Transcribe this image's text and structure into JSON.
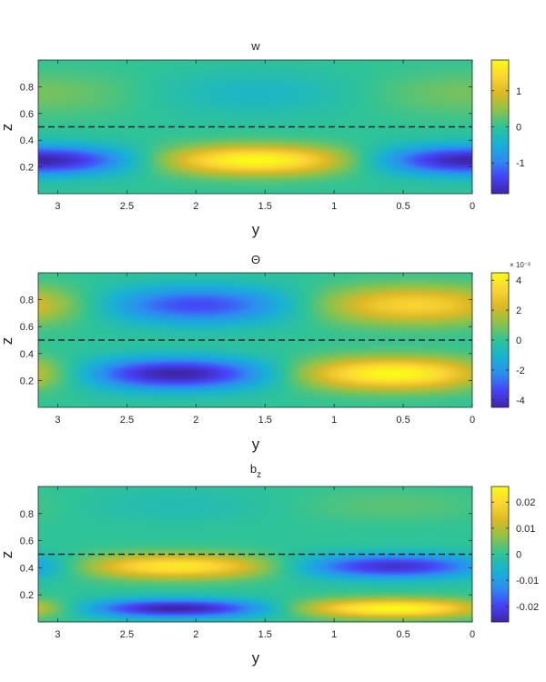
{
  "colormap": [
    "#3e26a8",
    "#4743f8",
    "#2d8df0",
    "#18b2d4",
    "#2fc398",
    "#8cc24c",
    "#dbb925",
    "#fcd535",
    "#f9fb15"
  ],
  "dashed_line_color": "#262626",
  "chart_data": [
    {
      "type": "heatmap",
      "title": "w",
      "xlabel": "y",
      "ylabel": "z",
      "xlim": [
        0,
        3.1416
      ],
      "x_reversed": true,
      "ylim": [
        0,
        1
      ],
      "x_ticks": [
        3,
        2.5,
        2,
        1.5,
        1,
        0.5,
        0
      ],
      "x_tick_labels": [
        "3",
        "2.5",
        "2",
        "1.5",
        "1",
        "0.5",
        "0"
      ],
      "y_ticks": [
        0.2,
        0.4,
        0.6,
        0.8
      ],
      "y_tick_labels": [
        "0.2",
        "0.4",
        "0.6",
        "0.8"
      ],
      "dashed_line_z": 0.5,
      "colorbar": {
        "clim": [
          -1.85,
          1.85
        ],
        "ticks": [
          -1,
          0,
          1
        ],
        "tick_labels": [
          "-1",
          "0",
          "1"
        ],
        "exponent_label": ""
      },
      "field": {
        "lower": {
          "amplitude": -1.85,
          "phase": 0,
          "center_z": 0.25,
          "width_z": 0.11
        },
        "upper": {
          "amplitude": 0.35,
          "phase": 0,
          "center_z": 0.75,
          "width_z": 0.16
        }
      }
    },
    {
      "type": "heatmap",
      "title": "Θ",
      "xlabel": "y",
      "ylabel": "z",
      "xlim": [
        0,
        3.1416
      ],
      "x_reversed": true,
      "ylim": [
        0,
        1
      ],
      "x_ticks": [
        3,
        2.5,
        2,
        1.5,
        1,
        0.5,
        0
      ],
      "x_tick_labels": [
        "3",
        "2.5",
        "2",
        "1.5",
        "1",
        "0.5",
        "0"
      ],
      "y_ticks": [
        0.2,
        0.4,
        0.6,
        0.8
      ],
      "y_tick_labels": [
        "0.2",
        "0.4",
        "0.6",
        "0.8"
      ],
      "dashed_line_z": 0.5,
      "colorbar": {
        "clim": [
          -4.5,
          4.5
        ],
        "ticks": [
          -4,
          -2,
          0,
          2,
          4
        ],
        "tick_labels": [
          "-4",
          "-2",
          "0",
          "2",
          "4"
        ],
        "exponent_label": "× 10⁻³"
      },
      "field": {
        "lower": {
          "amplitude": -4.5,
          "phase": -1.0,
          "center_z": 0.25,
          "width_z": 0.12
        },
        "upper": {
          "amplitude": -3.3,
          "phase": -1.15,
          "center_z": 0.76,
          "width_z": 0.14
        }
      }
    },
    {
      "type": "heatmap",
      "title": "b_z",
      "xlabel": "y",
      "ylabel": "z",
      "xlim": [
        0,
        3.1416
      ],
      "x_reversed": true,
      "ylim": [
        0,
        1
      ],
      "x_ticks": [
        3,
        2.5,
        2,
        1.5,
        1,
        0.5,
        0
      ],
      "x_tick_labels": [
        "3",
        "2.5",
        "2",
        "1.5",
        "1",
        "0.5",
        "0"
      ],
      "y_ticks": [
        0.2,
        0.4,
        0.6,
        0.8
      ],
      "y_tick_labels": [
        "0.2",
        "0.4",
        "0.6",
        "0.8"
      ],
      "dashed_line_z": 0.5,
      "colorbar": {
        "clim": [
          -0.026,
          0.026
        ],
        "ticks": [
          -0.02,
          -0.01,
          0,
          0.01,
          0.02
        ],
        "tick_labels": [
          "-0.02",
          "-0.01",
          "0",
          "0.01",
          "0.02"
        ],
        "exponent_label": ""
      },
      "field": {
        "lower": {
          "amplitude": -0.026,
          "phase": -1.0,
          "center_z": 0.1,
          "width_z": 0.07
        },
        "upper": {
          "amplitude": 0.023,
          "phase": -1.0,
          "center_z": 0.41,
          "width_z": 0.09
        },
        "top": {
          "amplitude": -0.003,
          "phase": -1.0,
          "center_z": 0.86,
          "width_z": 0.12
        }
      }
    }
  ]
}
